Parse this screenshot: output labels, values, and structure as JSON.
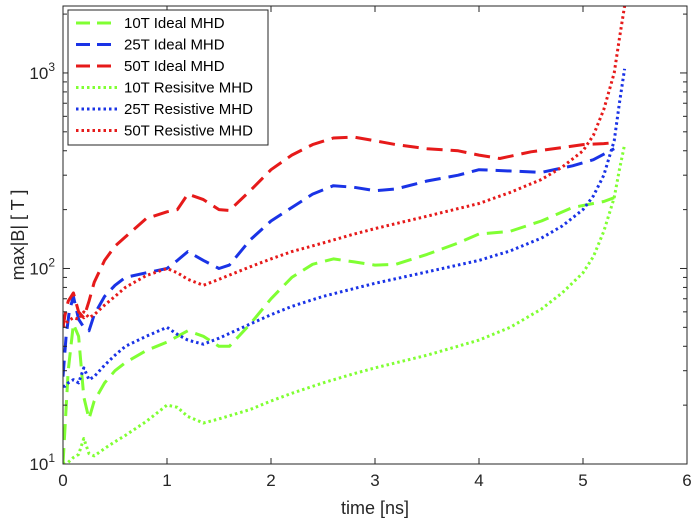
{
  "chart_data": {
    "type": "line",
    "xlabel": "time [ns]",
    "ylabel": "max|B| [ T ]",
    "xlim": [
      0,
      6
    ],
    "ylim": [
      10,
      2200
    ],
    "yscale": "log",
    "grid": false,
    "legend_position": "top-left",
    "x_ticks": [
      0,
      1,
      2,
      3,
      4,
      5,
      6
    ],
    "x_tick_labels": [
      "0",
      "1",
      "2",
      "3",
      "4",
      "5",
      "6"
    ],
    "y_ticks": [
      10,
      100,
      1000
    ],
    "y_tick_labels": [
      {
        "base": "10",
        "exp": "1"
      },
      {
        "base": "10",
        "exp": "2"
      },
      {
        "base": "10",
        "exp": "3"
      }
    ],
    "series": [
      {
        "name": "10T Ideal MHD",
        "color": "#80ff33",
        "style": "dashed",
        "x": [
          0,
          0.05,
          0.1,
          0.15,
          0.2,
          0.25,
          0.3,
          0.4,
          0.5,
          0.6,
          0.8,
          1.0,
          1.2,
          1.35,
          1.5,
          1.6,
          1.8,
          2.0,
          2.2,
          2.4,
          2.6,
          2.8,
          3.0,
          3.2,
          3.5,
          3.8,
          4.0,
          4.3,
          4.6,
          4.9,
          5.2,
          5.3
        ],
        "y": [
          10,
          30,
          52,
          45,
          22,
          17,
          21,
          26,
          30,
          33,
          38,
          42,
          48,
          45,
          40,
          40,
          52,
          70,
          90,
          105,
          112,
          108,
          104,
          105,
          118,
          135,
          150,
          155,
          175,
          205,
          220,
          230
        ]
      },
      {
        "name": "25T Ideal MHD",
        "color": "#1a33e6",
        "style": "dashed",
        "x": [
          0,
          0.03,
          0.06,
          0.1,
          0.15,
          0.2,
          0.25,
          0.3,
          0.4,
          0.5,
          0.6,
          0.8,
          1.0,
          1.1,
          1.2,
          1.35,
          1.5,
          1.6,
          1.8,
          2.0,
          2.2,
          2.4,
          2.6,
          2.8,
          3.0,
          3.2,
          3.5,
          3.8,
          4.0,
          4.3,
          4.6,
          4.9,
          5.1,
          5.3
        ],
        "y": [
          28,
          45,
          60,
          72,
          55,
          50,
          48,
          58,
          72,
          82,
          90,
          95,
          100,
          110,
          122,
          110,
          100,
          104,
          140,
          175,
          205,
          240,
          265,
          260,
          250,
          255,
          280,
          300,
          320,
          315,
          310,
          335,
          360,
          410
        ]
      },
      {
        "name": "50T Ideal MHD",
        "color": "#e61a1a",
        "style": "dashed",
        "x": [
          0,
          0.02,
          0.05,
          0.1,
          0.15,
          0.2,
          0.25,
          0.3,
          0.4,
          0.5,
          0.6,
          0.8,
          1.0,
          1.1,
          1.2,
          1.35,
          1.5,
          1.6,
          1.8,
          2.0,
          2.2,
          2.4,
          2.6,
          2.8,
          3.0,
          3.2,
          3.5,
          3.8,
          4.0,
          4.2,
          4.5,
          4.8,
          5.0,
          5.2,
          5.3
        ],
        "y": [
          50,
          58,
          68,
          75,
          60,
          56,
          68,
          85,
          110,
          130,
          145,
          180,
          195,
          200,
          240,
          225,
          200,
          198,
          250,
          320,
          380,
          430,
          465,
          470,
          450,
          430,
          410,
          400,
          380,
          365,
          395,
          415,
          430,
          435,
          440
        ]
      },
      {
        "name": "10T Resisitve MHD",
        "color": "#80ff33",
        "style": "dotted",
        "x": [
          0,
          0.05,
          0.1,
          0.15,
          0.2,
          0.25,
          0.3,
          0.4,
          0.5,
          0.6,
          0.8,
          1.0,
          1.1,
          1.2,
          1.35,
          1.5,
          1.8,
          2.0,
          2.2,
          2.5,
          2.8,
          3.0,
          3.5,
          4.0,
          4.3,
          4.6,
          4.8,
          5.0,
          5.1,
          5.2,
          5.3,
          5.35,
          5.4
        ],
        "y": [
          10,
          10.2,
          10.8,
          11.2,
          13.5,
          11.3,
          11.0,
          12,
          13,
          14,
          16.5,
          20,
          19.5,
          17.5,
          16.2,
          17,
          19,
          21,
          23,
          26,
          29,
          31,
          36,
          43,
          50,
          62,
          75,
          95,
          115,
          155,
          230,
          320,
          430
        ]
      },
      {
        "name": "25T Resistive MHD",
        "color": "#1a33e6",
        "style": "dotted",
        "x": [
          0,
          0.02,
          0.05,
          0.1,
          0.15,
          0.2,
          0.25,
          0.3,
          0.4,
          0.5,
          0.6,
          0.8,
          1.0,
          1.1,
          1.2,
          1.35,
          1.5,
          1.8,
          2.0,
          2.2,
          2.5,
          2.8,
          3.0,
          3.5,
          4.0,
          4.3,
          4.6,
          4.8,
          5.0,
          5.1,
          5.2,
          5.3,
          5.35,
          5.4
        ],
        "y": [
          25,
          25,
          26,
          27,
          26,
          31,
          27,
          28,
          32,
          36,
          40,
          45,
          50,
          46,
          43,
          41,
          44,
          52,
          58,
          64,
          72,
          79,
          84,
          96,
          110,
          123,
          143,
          165,
          200,
          235,
          300,
          450,
          700,
          1050
        ]
      },
      {
        "name": "50T Resistive MHD",
        "color": "#e61a1a",
        "style": "dotted",
        "x": [
          0,
          0.02,
          0.05,
          0.1,
          0.15,
          0.2,
          0.25,
          0.3,
          0.4,
          0.5,
          0.6,
          0.8,
          1.0,
          1.1,
          1.2,
          1.35,
          1.5,
          1.8,
          2.0,
          2.2,
          2.5,
          2.8,
          3.0,
          3.5,
          4.0,
          4.3,
          4.6,
          4.8,
          5.0,
          5.1,
          5.2,
          5.3,
          5.35,
          5.4
        ],
        "y": [
          50,
          52,
          54,
          56,
          55,
          60,
          56,
          58,
          65,
          72,
          80,
          92,
          100,
          95,
          88,
          82,
          88,
          102,
          112,
          122,
          135,
          150,
          160,
          185,
          215,
          245,
          285,
          330,
          400,
          480,
          650,
          1000,
          1500,
          2200
        ]
      }
    ]
  }
}
